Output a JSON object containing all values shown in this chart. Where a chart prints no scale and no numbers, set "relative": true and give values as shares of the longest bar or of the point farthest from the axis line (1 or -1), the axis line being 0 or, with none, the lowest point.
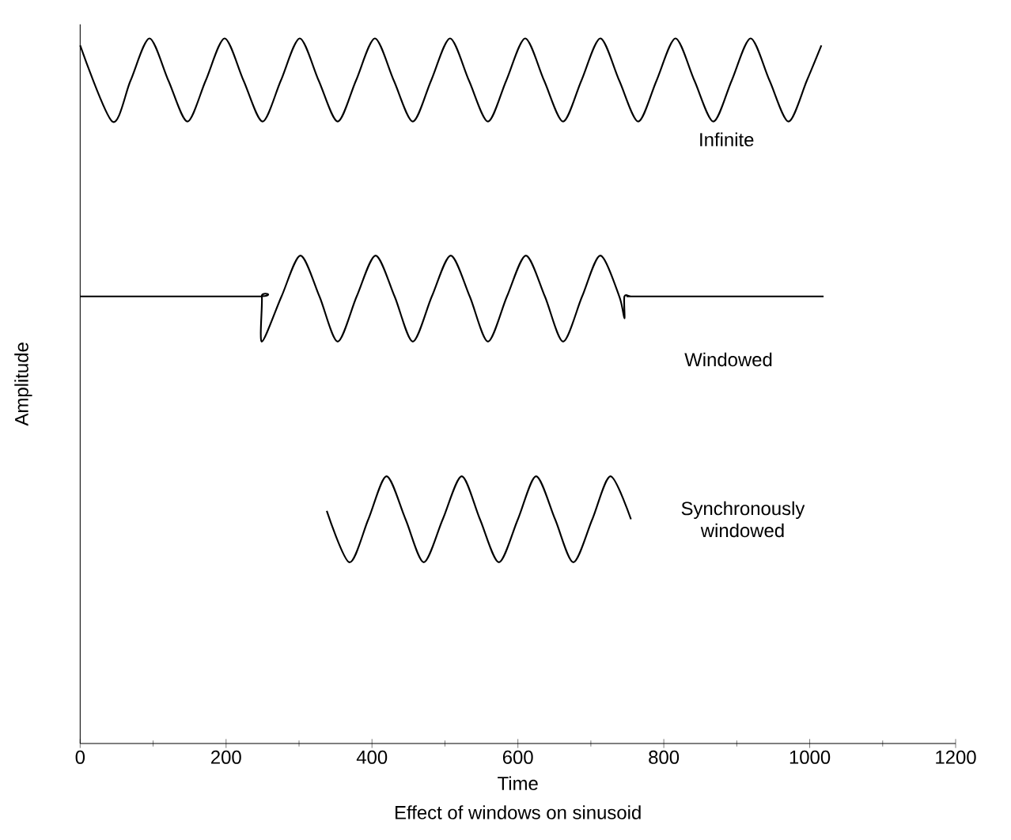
{
  "chart_data": {
    "type": "line",
    "title": "Effect of windows on sinusoid",
    "xlabel": "Time",
    "ylabel": "Amplitude",
    "relative": true,
    "tick_labels": "x",
    "marker": "none",
    "line_style": "solid",
    "legend": false,
    "grid": false,
    "xlim": [
      0,
      1200
    ],
    "xticks": [
      0,
      200,
      400,
      600,
      800,
      1000,
      1200
    ],
    "series": [
      {
        "name": "Infinite",
        "color": "#000000",
        "x": [
          0,
          44,
          69,
          95,
          121,
          147,
          172,
          198,
          224,
          250,
          275,
          301,
          327,
          353,
          378,
          404,
          430,
          456,
          481,
          507,
          533,
          559,
          584,
          610,
          636,
          662,
          687,
          713,
          739,
          765,
          790,
          816,
          842,
          868,
          893,
          919,
          945,
          971,
          996,
          1016
        ],
        "values": [
          0.99,
          0.882,
          0.94,
          1.0,
          0.94,
          0.882,
          0.94,
          1.0,
          0.94,
          0.882,
          0.94,
          1.0,
          0.94,
          0.882,
          0.94,
          1.0,
          0.94,
          0.882,
          0.94,
          1.0,
          0.94,
          0.882,
          0.94,
          1.0,
          0.94,
          0.882,
          0.94,
          1.0,
          0.94,
          0.882,
          0.94,
          1.0,
          0.94,
          0.882,
          0.94,
          1.0,
          0.94,
          0.882,
          0.94,
          0.99
        ]
      },
      {
        "name": "Windowed",
        "color": "#000000",
        "x": [
          0,
          240,
          249,
          249,
          276,
          302,
          328,
          353,
          379,
          405,
          431,
          456,
          482,
          508,
          534,
          559,
          585,
          611,
          637,
          662,
          688,
          713,
          739,
          746,
          746,
          755,
          770,
          1019
        ],
        "values": [
          0.634,
          0.634,
          0.634,
          0.57,
          0.634,
          0.692,
          0.634,
          0.57,
          0.634,
          0.692,
          0.634,
          0.57,
          0.634,
          0.692,
          0.634,
          0.57,
          0.634,
          0.692,
          0.634,
          0.57,
          0.634,
          0.692,
          0.634,
          0.603,
          0.634,
          0.634,
          0.634,
          0.634
        ]
      },
      {
        "name": "Synchronously windowed",
        "color": "#000000",
        "x": [
          338,
          369,
          395,
          420,
          446,
          471,
          497,
          523,
          548,
          574,
          600,
          625,
          651,
          676,
          702,
          727,
          755
        ],
        "values": [
          0.33,
          0.257,
          0.318,
          0.379,
          0.318,
          0.257,
          0.318,
          0.379,
          0.318,
          0.257,
          0.318,
          0.379,
          0.318,
          0.257,
          0.318,
          0.379,
          0.318
        ]
      }
    ]
  }
}
